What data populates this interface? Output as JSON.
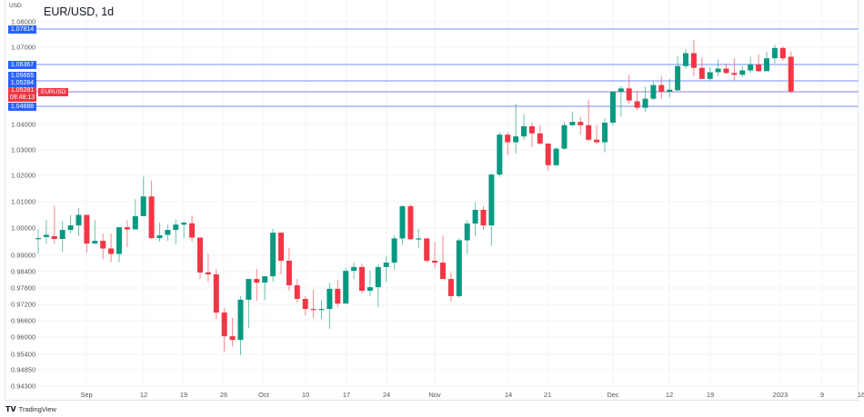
{
  "header": {
    "currency": "USD",
    "title": "EUR/USD, 1d"
  },
  "price_labels": [
    {
      "value": "1.07814",
      "color": "#2962ff"
    },
    {
      "value": "1.06367",
      "color": "#2962ff"
    },
    {
      "value": "1.05665",
      "color": "#2962ff"
    },
    {
      "value": "1.05284",
      "color": "#2962ff"
    },
    {
      "value": "1.04688",
      "color": "#2962ff"
    }
  ],
  "current": {
    "price": "1.05281",
    "countdown": "09:48:13",
    "symbol": "EURUSD",
    "color": "#f23645"
  },
  "branding": {
    "logo_text": "TradingView",
    "logo_mark": "TV"
  },
  "chart_data": {
    "type": "candlestick",
    "title": "EUR/USD, 1d",
    "ylabel": "USD",
    "y_ticks": [
      "1.08000",
      "1.07000",
      "1.04000",
      "1.03000",
      "1.02000",
      "1.01000",
      "1.00000",
      "0.99000",
      "0.98400",
      "0.97800",
      "0.97200",
      "0.96600",
      "0.96000",
      "0.95400",
      "0.94850",
      "0.94300"
    ],
    "x_ticks": [
      "Sep",
      "12",
      "19",
      "26",
      "Oct",
      "10",
      "17",
      "24",
      "Nov",
      "14",
      "21",
      "Dec",
      "12",
      "19",
      "2023",
      "9",
      "16"
    ],
    "horizontal_levels": [
      1.07814,
      1.06367,
      1.05665,
      1.05284,
      1.04688
    ],
    "grid": true,
    "colors": {
      "up": "#089981",
      "down": "#f23645",
      "level": "#2962ff"
    },
    "ohlc": [
      [
        0.996,
        0.9997,
        0.9905,
        0.9963
      ],
      [
        0.9967,
        1.003,
        0.9943,
        0.9975
      ],
      [
        0.997,
        1.0085,
        0.9943,
        0.996
      ],
      [
        0.996,
        1.0027,
        0.9913,
        0.9993
      ],
      [
        0.9993,
        1.005,
        0.998,
        1.001
      ],
      [
        1.001,
        1.0076,
        0.997,
        1.005
      ],
      [
        1.005,
        1.005,
        0.991,
        0.9943
      ],
      [
        0.9943,
        1.003,
        0.9943,
        0.9953
      ],
      [
        0.9953,
        0.998,
        0.9885,
        0.9925
      ],
      [
        0.9925,
        0.998,
        0.9875,
        0.9905
      ],
      [
        0.9905,
        1.0003,
        0.9875,
        1.0003
      ],
      [
        1.0003,
        1.003,
        0.993,
        0.9995
      ],
      [
        0.9995,
        1.011,
        0.9995,
        1.0045
      ],
      [
        1.0045,
        1.0195,
        1.0045,
        1.012
      ],
      [
        1.012,
        1.018,
        0.996,
        0.9963
      ],
      [
        0.9963,
        1.002,
        0.995,
        0.9973
      ],
      [
        0.9975,
        1.0013,
        0.9953,
        0.9993
      ],
      [
        0.9993,
        1.0033,
        0.994,
        1.0013
      ],
      [
        1.0013,
        1.0025,
        0.9963,
        1.002
      ],
      [
        1.0018,
        1.0048,
        0.995,
        0.9965
      ],
      [
        0.9965,
        0.9965,
        0.9813,
        0.9837
      ],
      [
        0.9837,
        0.9905,
        0.9803,
        0.983
      ],
      [
        0.983,
        0.985,
        0.9667,
        0.969
      ],
      [
        0.969,
        0.9707,
        0.955,
        0.9603
      ],
      [
        0.9603,
        0.967,
        0.9567,
        0.959
      ],
      [
        0.959,
        0.975,
        0.9537,
        0.9737
      ],
      [
        0.9737,
        0.9813,
        0.9633,
        0.9813
      ],
      [
        0.9813,
        0.985,
        0.9733,
        0.98
      ],
      [
        0.98,
        0.9823,
        0.9737,
        0.9823
      ],
      [
        0.9823,
        0.9997,
        0.9803,
        0.9983
      ],
      [
        0.9983,
        0.9983,
        0.983,
        0.988
      ],
      [
        0.988,
        0.9927,
        0.977,
        0.979
      ],
      [
        0.979,
        0.9813,
        0.9727,
        0.974
      ],
      [
        0.974,
        0.975,
        0.968,
        0.9703
      ],
      [
        0.9703,
        0.9773,
        0.967,
        0.97
      ],
      [
        0.97,
        0.9737,
        0.9667,
        0.9703
      ],
      [
        0.9703,
        0.98,
        0.963,
        0.9777
      ],
      [
        0.9777,
        0.981,
        0.971,
        0.9723
      ],
      [
        0.9723,
        0.9853,
        0.9723,
        0.9843
      ],
      [
        0.9843,
        0.9873,
        0.9813,
        0.9857
      ],
      [
        0.9857,
        0.987,
        0.976,
        0.977
      ],
      [
        0.977,
        0.9843,
        0.975,
        0.9783
      ],
      [
        0.9783,
        0.9867,
        0.971,
        0.9857
      ],
      [
        0.9857,
        0.9897,
        0.9803,
        0.9873
      ],
      [
        0.9873,
        0.9973,
        0.9847,
        0.9962
      ],
      [
        0.9962,
        1.0086,
        0.9938,
        1.0083
      ],
      [
        1.0083,
        1.009,
        0.9955,
        0.9959
      ],
      [
        0.9962,
        0.9997,
        0.9925,
        0.9962
      ],
      [
        0.9962,
        0.9962,
        0.9873,
        0.988
      ],
      [
        0.988,
        0.995,
        0.9853,
        0.9873
      ],
      [
        0.9873,
        0.9973,
        0.9813,
        0.9813
      ],
      [
        0.9813,
        0.9837,
        0.973,
        0.975
      ],
      [
        0.975,
        0.9962,
        0.9743,
        0.9955
      ],
      [
        0.9955,
        1.003,
        0.9903,
        1.0017
      ],
      [
        1.0017,
        1.0097,
        0.997,
        1.0069
      ],
      [
        1.0069,
        1.0083,
        0.9993,
        1.001
      ],
      [
        1.001,
        1.0207,
        0.9935,
        1.0203
      ],
      [
        1.0203,
        1.037,
        1.0195,
        1.036
      ],
      [
        1.036,
        1.037,
        1.028,
        1.033
      ],
      [
        1.033,
        1.048,
        1.0285,
        1.0353
      ],
      [
        1.0353,
        1.044,
        1.034,
        1.0393
      ],
      [
        1.0393,
        1.0407,
        1.031,
        1.0365
      ],
      [
        1.0365,
        1.0397,
        1.032,
        1.0325
      ],
      [
        1.0325,
        1.0325,
        1.022,
        1.024
      ],
      [
        1.024,
        1.031,
        1.0235,
        1.0305
      ],
      [
        1.0305,
        1.041,
        1.03,
        1.0397
      ],
      [
        1.0397,
        1.045,
        1.0395,
        1.041
      ],
      [
        1.041,
        1.043,
        1.036,
        1.0397
      ],
      [
        1.0397,
        1.0497,
        1.0335,
        1.034
      ],
      [
        1.034,
        1.0397,
        1.0325,
        1.033
      ],
      [
        1.033,
        1.0425,
        1.029,
        1.0407
      ],
      [
        1.0407,
        1.053,
        1.0395,
        1.0527
      ],
      [
        1.0527,
        1.055,
        1.043,
        1.054
      ],
      [
        1.054,
        1.0593,
        1.048,
        1.0493
      ],
      [
        1.049,
        1.053,
        1.0455,
        1.0465
      ],
      [
        1.0465,
        1.0547,
        1.045,
        1.05
      ],
      [
        1.05,
        1.0567,
        1.0495,
        1.0553
      ],
      [
        1.0553,
        1.0587,
        1.05,
        1.0527
      ],
      [
        1.0527,
        1.0577,
        1.0505,
        1.0535
      ],
      [
        1.0533,
        1.0667,
        1.053,
        1.0627
      ],
      [
        1.0627,
        1.0693,
        1.0617,
        1.0677
      ],
      [
        1.0677,
        1.0729,
        1.0587,
        1.062
      ],
      [
        1.062,
        1.066,
        1.0577,
        1.0577
      ],
      [
        1.0577,
        1.0623,
        1.057,
        1.0603
      ],
      [
        1.0603,
        1.0653,
        1.0587,
        1.0617
      ],
      [
        1.0617,
        1.0637,
        1.0595,
        1.06
      ],
      [
        1.06,
        1.0657,
        1.057,
        1.0593
      ],
      [
        1.0593,
        1.0627,
        1.0583,
        1.061
      ],
      [
        1.061,
        1.0663,
        1.06,
        1.0633
      ],
      [
        1.0633,
        1.0673,
        1.0603,
        1.0607
      ],
      [
        1.0607,
        1.0683,
        1.0607,
        1.0657
      ],
      [
        1.0657,
        1.0711,
        1.0637,
        1.0697
      ],
      [
        1.0697,
        1.0704,
        1.0647,
        1.0657
      ],
      [
        1.0663,
        1.0683,
        1.0521,
        1.0528
      ]
    ]
  }
}
